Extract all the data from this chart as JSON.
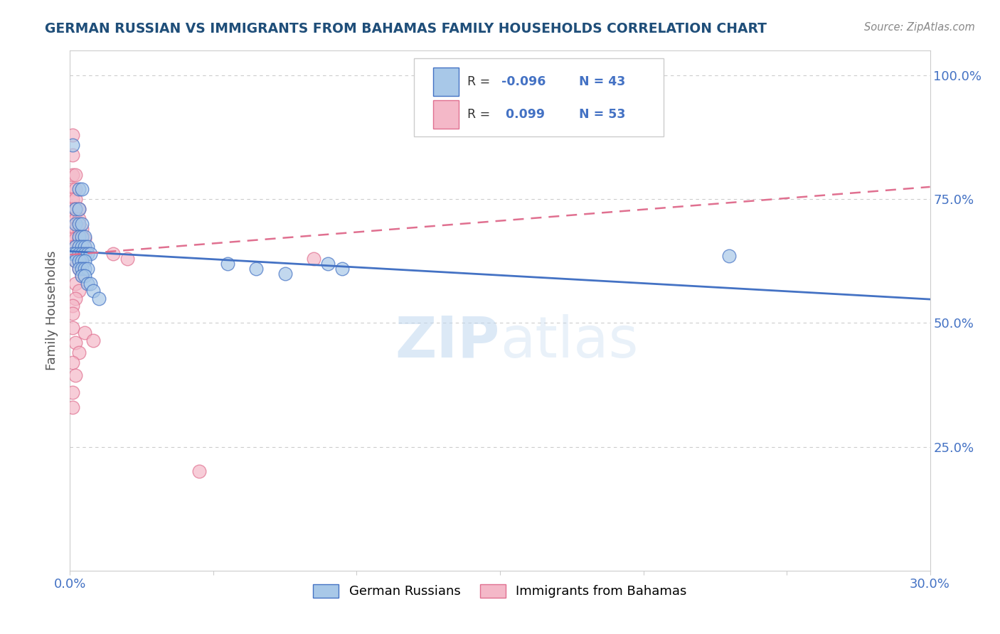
{
  "title": "GERMAN RUSSIAN VS IMMIGRANTS FROM BAHAMAS FAMILY HOUSEHOLDS CORRELATION CHART",
  "source": "Source: ZipAtlas.com",
  "ylabel": "Family Households",
  "watermark": "ZIPatlas",
  "xlim": [
    0.0,
    0.3
  ],
  "ylim": [
    0.0,
    1.05
  ],
  "color_blue": "#a8c8e8",
  "color_pink": "#f4b8c8",
  "line_blue": "#4472c4",
  "line_pink": "#e07090",
  "title_color": "#1f4e79",
  "source_color": "#888888",
  "axis_color": "#cccccc",
  "grid_color": "#cccccc",
  "blue_line_y0": 0.645,
  "blue_line_y1": 0.548,
  "pink_line_y0": 0.638,
  "pink_line_y1": 0.775,
  "blue_scatter": [
    [
      0.001,
      0.86
    ],
    [
      0.003,
      0.77
    ],
    [
      0.004,
      0.77
    ],
    [
      0.002,
      0.73
    ],
    [
      0.003,
      0.73
    ],
    [
      0.002,
      0.7
    ],
    [
      0.003,
      0.7
    ],
    [
      0.004,
      0.7
    ],
    [
      0.003,
      0.675
    ],
    [
      0.004,
      0.675
    ],
    [
      0.005,
      0.675
    ],
    [
      0.002,
      0.655
    ],
    [
      0.003,
      0.655
    ],
    [
      0.004,
      0.655
    ],
    [
      0.005,
      0.655
    ],
    [
      0.006,
      0.655
    ],
    [
      0.001,
      0.64
    ],
    [
      0.002,
      0.64
    ],
    [
      0.003,
      0.64
    ],
    [
      0.004,
      0.64
    ],
    [
      0.005,
      0.64
    ],
    [
      0.006,
      0.64
    ],
    [
      0.007,
      0.64
    ],
    [
      0.002,
      0.625
    ],
    [
      0.003,
      0.625
    ],
    [
      0.004,
      0.625
    ],
    [
      0.005,
      0.625
    ],
    [
      0.003,
      0.61
    ],
    [
      0.004,
      0.61
    ],
    [
      0.005,
      0.61
    ],
    [
      0.006,
      0.61
    ],
    [
      0.004,
      0.595
    ],
    [
      0.005,
      0.595
    ],
    [
      0.006,
      0.58
    ],
    [
      0.007,
      0.58
    ],
    [
      0.008,
      0.565
    ],
    [
      0.01,
      0.55
    ],
    [
      0.055,
      0.62
    ],
    [
      0.065,
      0.61
    ],
    [
      0.075,
      0.6
    ],
    [
      0.09,
      0.62
    ],
    [
      0.095,
      0.61
    ],
    [
      0.23,
      0.635
    ]
  ],
  "pink_scatter": [
    [
      0.001,
      0.88
    ],
    [
      0.001,
      0.84
    ],
    [
      0.001,
      0.8
    ],
    [
      0.002,
      0.8
    ],
    [
      0.001,
      0.77
    ],
    [
      0.002,
      0.77
    ],
    [
      0.001,
      0.75
    ],
    [
      0.002,
      0.75
    ],
    [
      0.001,
      0.73
    ],
    [
      0.002,
      0.73
    ],
    [
      0.003,
      0.73
    ],
    [
      0.001,
      0.71
    ],
    [
      0.002,
      0.71
    ],
    [
      0.003,
      0.71
    ],
    [
      0.001,
      0.69
    ],
    [
      0.002,
      0.69
    ],
    [
      0.003,
      0.69
    ],
    [
      0.004,
      0.69
    ],
    [
      0.001,
      0.67
    ],
    [
      0.002,
      0.67
    ],
    [
      0.003,
      0.67
    ],
    [
      0.004,
      0.67
    ],
    [
      0.005,
      0.67
    ],
    [
      0.001,
      0.655
    ],
    [
      0.002,
      0.655
    ],
    [
      0.003,
      0.655
    ],
    [
      0.004,
      0.655
    ],
    [
      0.005,
      0.655
    ],
    [
      0.001,
      0.64
    ],
    [
      0.002,
      0.64
    ],
    [
      0.003,
      0.64
    ],
    [
      0.002,
      0.625
    ],
    [
      0.003,
      0.625
    ],
    [
      0.003,
      0.61
    ],
    [
      0.004,
      0.595
    ],
    [
      0.002,
      0.58
    ],
    [
      0.003,
      0.565
    ],
    [
      0.002,
      0.55
    ],
    [
      0.001,
      0.535
    ],
    [
      0.001,
      0.52
    ],
    [
      0.015,
      0.64
    ],
    [
      0.02,
      0.63
    ],
    [
      0.085,
      0.63
    ],
    [
      0.001,
      0.49
    ],
    [
      0.002,
      0.46
    ],
    [
      0.003,
      0.44
    ],
    [
      0.001,
      0.42
    ],
    [
      0.002,
      0.395
    ],
    [
      0.001,
      0.36
    ],
    [
      0.045,
      0.2
    ],
    [
      0.001,
      0.33
    ],
    [
      0.005,
      0.48
    ],
    [
      0.008,
      0.465
    ]
  ]
}
